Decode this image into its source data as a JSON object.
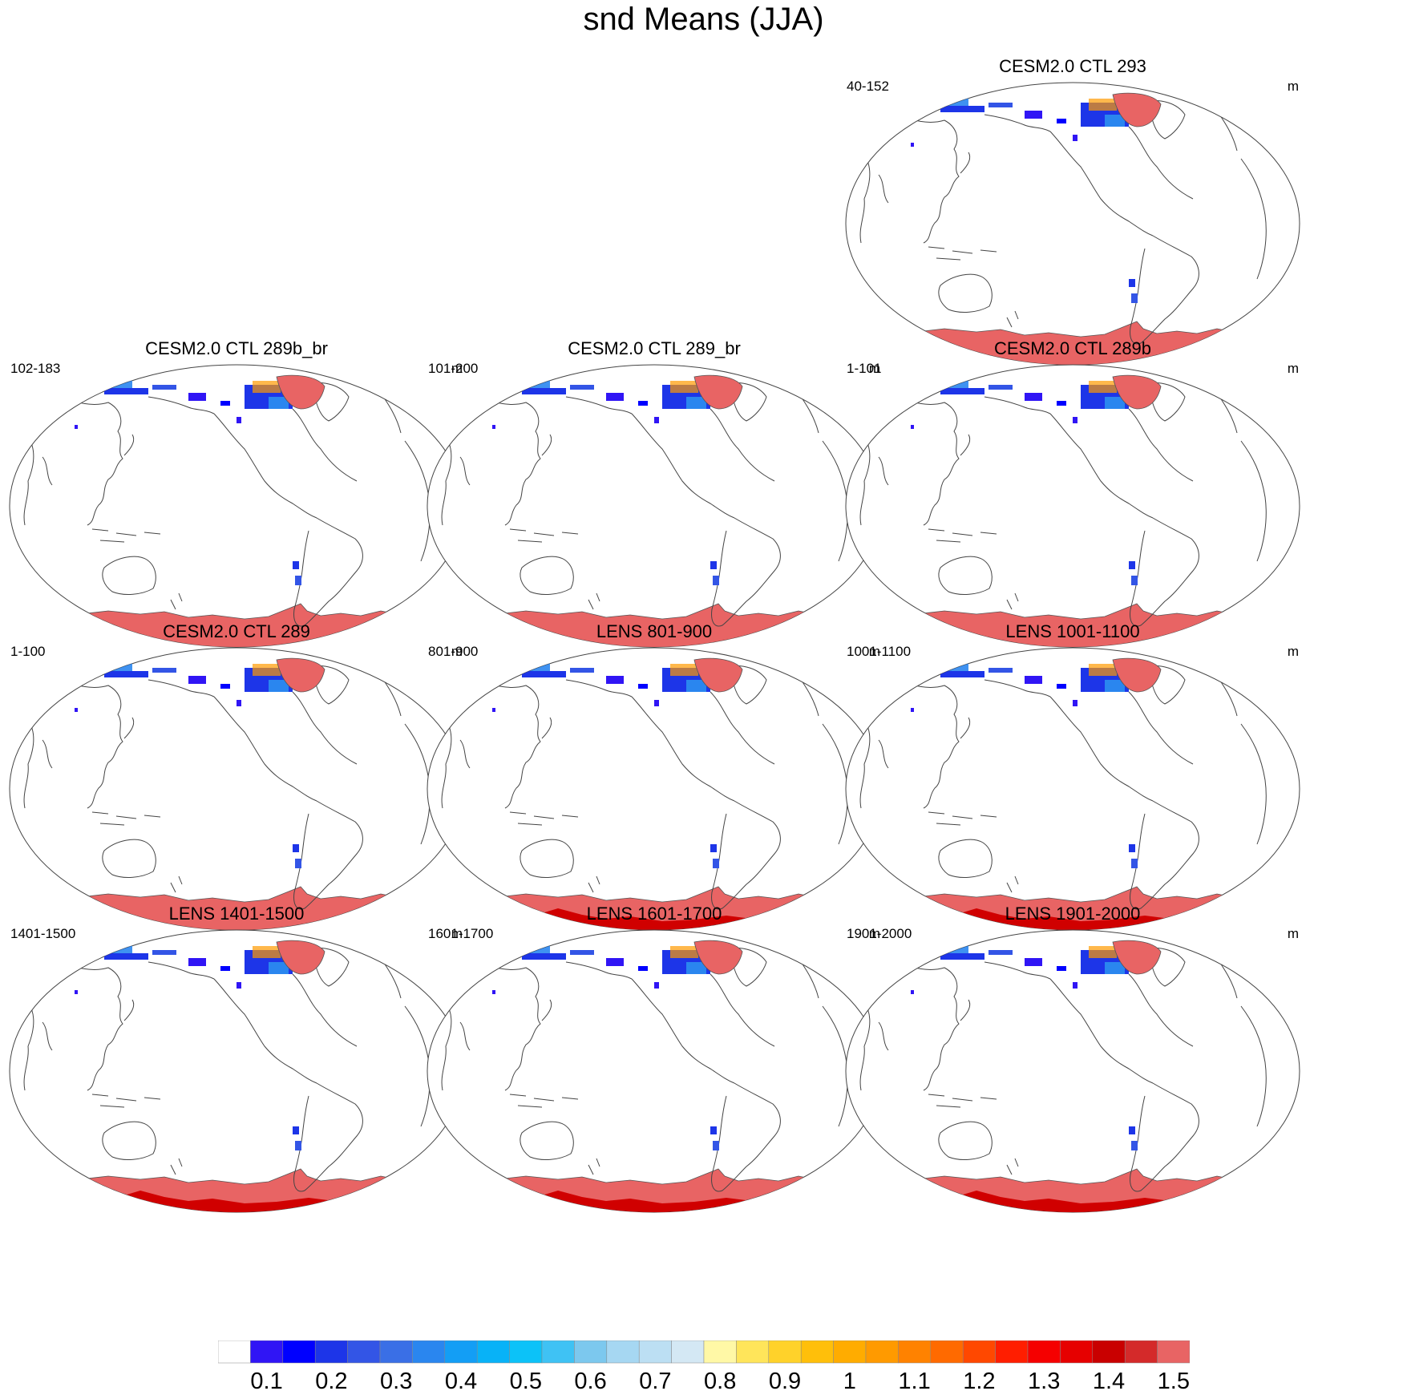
{
  "title": "snd Means (JJA)",
  "panels": [
    {
      "title": "CESM2.0 CTL 293",
      "range": "40-152",
      "unit": "m",
      "style": "ctl"
    },
    {
      "title": "CESM2.0 CTL 289b_br",
      "range": "102-183",
      "unit": "m",
      "style": "ctl"
    },
    {
      "title": "CESM2.0 CTL 289_br",
      "range": "101-200",
      "unit": "m",
      "style": "ctl"
    },
    {
      "title": "CESM2.0 CTL 289b",
      "range": "1-101",
      "unit": "m",
      "style": "ctl"
    },
    {
      "title": "CESM2.0 CTL 289",
      "range": "1-100",
      "unit": "m",
      "style": "ctl"
    },
    {
      "title": "LENS 801-900",
      "range": "801-900",
      "unit": "m",
      "style": "lens"
    },
    {
      "title": "LENS 1001-1100",
      "range": "1001-1100",
      "unit": "m",
      "style": "lens"
    },
    {
      "title": "LENS 1401-1500",
      "range": "1401-1500",
      "unit": "m",
      "style": "lens"
    },
    {
      "title": "LENS 1601-1700",
      "range": "1601-1700",
      "unit": "m",
      "style": "lens"
    },
    {
      "title": "LENS 1901-2000",
      "range": "1901-2000",
      "unit": "m",
      "style": "lens"
    }
  ],
  "colorbar": {
    "colors": [
      "#ffffff",
      "#3015f5",
      "#0000ff",
      "#1d35e8",
      "#3355e6",
      "#3a6fe6",
      "#2a86ef",
      "#139ef5",
      "#08b2f7",
      "#0cc2f8",
      "#3fc2f4",
      "#7cc8ee",
      "#a6d7f2",
      "#bcdff3",
      "#d4e8f4",
      "#fff8a6",
      "#ffe55a",
      "#ffd22a",
      "#ffbf0a",
      "#ffac00",
      "#ff9a00",
      "#ff8200",
      "#ff6a00",
      "#ff4800",
      "#ff1e00",
      "#f50000",
      "#e60000",
      "#c90000",
      "#d42a2a",
      "#e86464"
    ],
    "labels": [
      "0.1",
      "0.2",
      "0.3",
      "0.4",
      "0.5",
      "0.6",
      "0.7",
      "0.8",
      "0.9",
      "1",
      "1.1",
      "1.2",
      "1.3",
      "1.4",
      "1.5"
    ]
  }
}
